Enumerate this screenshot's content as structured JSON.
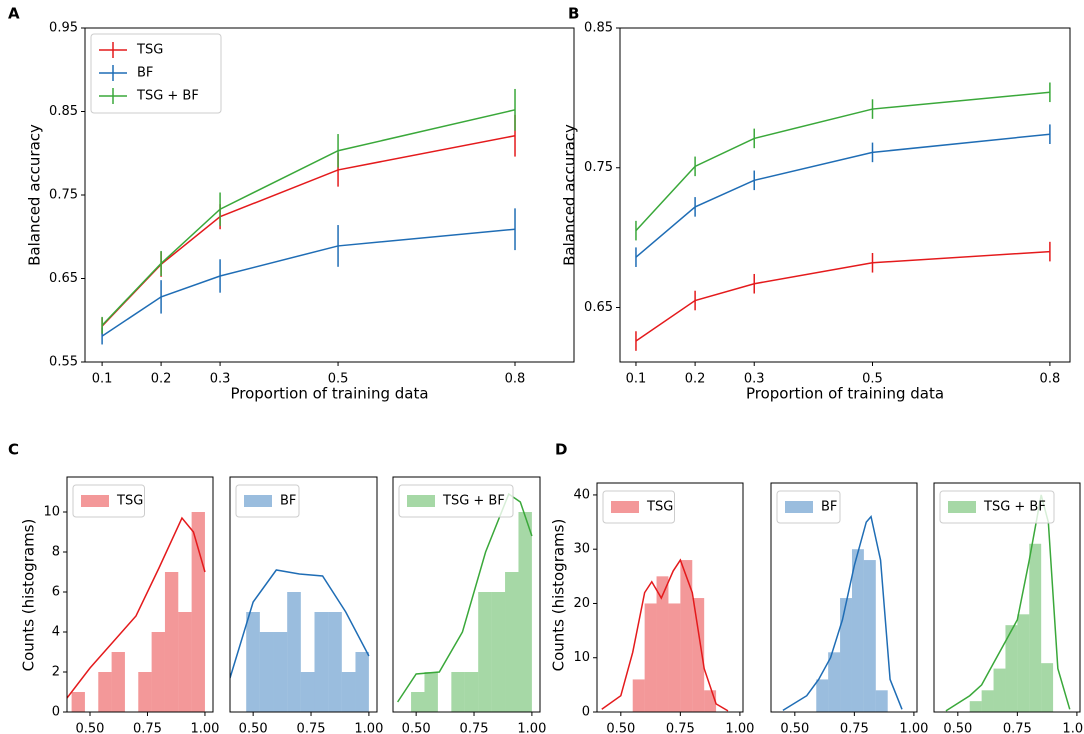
{
  "chart_data": [
    {
      "type": "line",
      "panel": "A",
      "xlabel": "Proportion of training data",
      "ylabel": "Balanced accuracy",
      "x": [
        0.1,
        0.2,
        0.3,
        0.5,
        0.8
      ],
      "xlim": [
        0.071,
        0.9
      ],
      "xticks": [
        0.1,
        0.2,
        0.3,
        0.5,
        0.8
      ],
      "ylim": [
        0.55,
        0.95
      ],
      "yticks": [
        0.55,
        0.65,
        0.75,
        0.85,
        0.95
      ],
      "legend": "upper left",
      "series": [
        {
          "name": "TSG",
          "color": "#e41a1c",
          "values": [
            0.593,
            0.667,
            0.724,
            0.78,
            0.821
          ],
          "errors": [
            0.01,
            0.015,
            0.015,
            0.02,
            0.025
          ]
        },
        {
          "name": "BF",
          "color": "#1f6db5",
          "values": [
            0.581,
            0.628,
            0.653,
            0.689,
            0.709
          ],
          "errors": [
            0.01,
            0.02,
            0.02,
            0.025,
            0.025
          ]
        },
        {
          "name": "TSG + BF",
          "color": "#3aa83a",
          "values": [
            0.594,
            0.668,
            0.733,
            0.803,
            0.852
          ],
          "errors": [
            0.01,
            0.015,
            0.02,
            0.02,
            0.025
          ]
        }
      ]
    },
    {
      "type": "line",
      "panel": "B",
      "xlabel": "Proportion of training data",
      "ylabel": "Balanced accuracy",
      "x": [
        0.1,
        0.2,
        0.3,
        0.5,
        0.8
      ],
      "xlim": [
        0.073,
        0.834
      ],
      "xticks": [
        0.1,
        0.2,
        0.3,
        0.5,
        0.8
      ],
      "ylim": [
        0.611,
        0.85
      ],
      "yticks": [
        0.65,
        0.75,
        0.85
      ],
      "series": [
        {
          "name": "TSG",
          "color": "#e41a1c",
          "values": [
            0.626,
            0.655,
            0.667,
            0.682,
            0.69
          ],
          "errors": [
            0.007,
            0.007,
            0.007,
            0.007,
            0.007
          ]
        },
        {
          "name": "BF",
          "color": "#1f6db5",
          "values": [
            0.686,
            0.722,
            0.741,
            0.761,
            0.774
          ],
          "errors": [
            0.007,
            0.007,
            0.007,
            0.007,
            0.007
          ]
        },
        {
          "name": "TSG + BF",
          "color": "#3aa83a",
          "values": [
            0.705,
            0.751,
            0.771,
            0.792,
            0.804
          ],
          "errors": [
            0.007,
            0.007,
            0.007,
            0.007,
            0.007
          ]
        }
      ]
    },
    {
      "type": "histogram",
      "panel": "C",
      "ylabel": "Counts (histograms)",
      "name": "TSG",
      "color": "#e41a1c",
      "bins": [
        0.42,
        0.478,
        0.536,
        0.594,
        0.652,
        0.71,
        0.768,
        0.826,
        0.884,
        0.942,
        1.0
      ],
      "counts": [
        1,
        0,
        2,
        3,
        0,
        2,
        4,
        7,
        5,
        10
      ],
      "kde": {
        "x": [
          0.4,
          0.5,
          0.6,
          0.7,
          0.8,
          0.9,
          0.95,
          1.0
        ],
        "y": [
          0.7,
          2.2,
          3.5,
          4.8,
          7.2,
          9.7,
          9.0,
          7.0
        ]
      },
      "xlim": [
        0.4,
        1.035
      ],
      "xticks": [
        {
          "value": 0.5,
          "label": "0.50"
        },
        {
          "value": 0.75,
          "label": "0.75"
        },
        {
          "value": 1.0,
          "label": "1.00"
        }
      ],
      "ylim": [
        0,
        11.75
      ],
      "yticks": [
        0,
        2,
        4,
        6,
        8,
        10
      ]
    },
    {
      "type": "histogram",
      "name": "BF",
      "color": "#1f6db5",
      "bins": [
        0.47,
        0.529,
        0.588,
        0.647,
        0.706,
        0.765,
        0.824,
        0.883,
        0.942,
        1.0
      ],
      "counts": [
        5,
        4,
        4,
        6,
        2,
        5,
        5,
        2,
        3
      ],
      "kde": {
        "x": [
          0.4,
          0.5,
          0.6,
          0.7,
          0.8,
          0.9,
          1.0
        ],
        "y": [
          1.7,
          5.5,
          7.1,
          6.9,
          6.8,
          5.0,
          2.8
        ]
      },
      "xlim": [
        0.4,
        1.035
      ],
      "xticks": [
        {
          "value": 0.5,
          "label": "0.50"
        },
        {
          "value": 0.75,
          "label": "0.75"
        },
        {
          "value": 1.0,
          "label": "1.00"
        }
      ],
      "ylim": [
        0,
        11.75
      ]
    },
    {
      "type": "histogram",
      "name": "TSG + BF",
      "color": "#3aa83a",
      "bins": [
        0.478,
        0.536,
        0.594,
        0.652,
        0.71,
        0.768,
        0.826,
        0.884,
        0.942,
        1.0
      ],
      "counts": [
        1,
        2,
        0,
        2,
        2,
        6,
        6,
        7,
        10
      ],
      "kde": {
        "x": [
          0.42,
          0.5,
          0.6,
          0.7,
          0.8,
          0.9,
          0.95,
          1.0
        ],
        "y": [
          0.5,
          1.9,
          2.0,
          4.0,
          8.0,
          10.9,
          10.5,
          8.8
        ]
      },
      "xlim": [
        0.4,
        1.035
      ],
      "xticks": [
        {
          "value": 0.5,
          "label": "0.50"
        },
        {
          "value": 0.75,
          "label": "0.75"
        },
        {
          "value": 1.0,
          "label": "1.00"
        }
      ],
      "ylim": [
        0,
        11.75
      ]
    },
    {
      "type": "histogram",
      "panel": "D",
      "ylabel": "Counts (histograms)",
      "name": "TSG",
      "color": "#e41a1c",
      "bins": [
        0.55,
        0.6,
        0.65,
        0.7,
        0.75,
        0.8,
        0.85,
        0.9
      ],
      "counts": [
        6,
        20,
        25,
        20,
        28,
        21,
        4
      ],
      "kde": {
        "x": [
          0.42,
          0.5,
          0.55,
          0.6,
          0.63,
          0.67,
          0.72,
          0.75,
          0.8,
          0.85,
          0.9,
          0.95
        ],
        "y": [
          0.5,
          3,
          11,
          22,
          24,
          21,
          26,
          28,
          22,
          8,
          1.5,
          0.2
        ]
      },
      "xlim": [
        0.4,
        1.013
      ],
      "xticks": [
        {
          "value": 0.5,
          "label": "0.50"
        },
        {
          "value": 0.75,
          "label": "0.75"
        },
        {
          "value": 1.0,
          "label": "1.00"
        }
      ],
      "ylim": [
        0,
        42.2
      ],
      "yticks": [
        0,
        10,
        20,
        30,
        40
      ]
    },
    {
      "type": "histogram",
      "name": "BF",
      "color": "#1f6db5",
      "bins": [
        0.59,
        0.64,
        0.69,
        0.74,
        0.79,
        0.84,
        0.89
      ],
      "counts": [
        6,
        11,
        21,
        30,
        28,
        4
      ],
      "kde": {
        "x": [
          0.45,
          0.55,
          0.6,
          0.65,
          0.7,
          0.75,
          0.8,
          0.82,
          0.86,
          0.9,
          0.95
        ],
        "y": [
          0.3,
          3,
          6,
          10,
          17,
          27,
          35,
          36,
          28,
          6,
          0.5
        ]
      },
      "xlim": [
        0.4,
        1.013
      ],
      "xticks": [
        {
          "value": 0.5,
          "label": "0.50"
        },
        {
          "value": 0.75,
          "label": "0.75"
        },
        {
          "value": 1.0,
          "label": "1.00"
        }
      ],
      "ylim": [
        0,
        42.2
      ]
    },
    {
      "type": "histogram",
      "name": "TSG + BF",
      "color": "#3aa83a",
      "bins": [
        0.55,
        0.6,
        0.65,
        0.7,
        0.75,
        0.8,
        0.85,
        0.9
      ],
      "counts": [
        2,
        4,
        8,
        16,
        18,
        31,
        9
      ],
      "kde": {
        "x": [
          0.45,
          0.55,
          0.6,
          0.65,
          0.7,
          0.75,
          0.8,
          0.85,
          0.88,
          0.92,
          0.97
        ],
        "y": [
          0.2,
          3,
          5,
          9,
          13,
          17,
          28,
          40,
          35,
          8,
          0.5
        ]
      },
      "xlim": [
        0.4,
        1.013
      ],
      "xticks": [
        {
          "value": 0.5,
          "label": "0.50"
        },
        {
          "value": 0.75,
          "label": "0.75"
        },
        {
          "value": 1.0,
          "label": "1.00"
        }
      ],
      "ylim": [
        0,
        42.2
      ]
    }
  ]
}
